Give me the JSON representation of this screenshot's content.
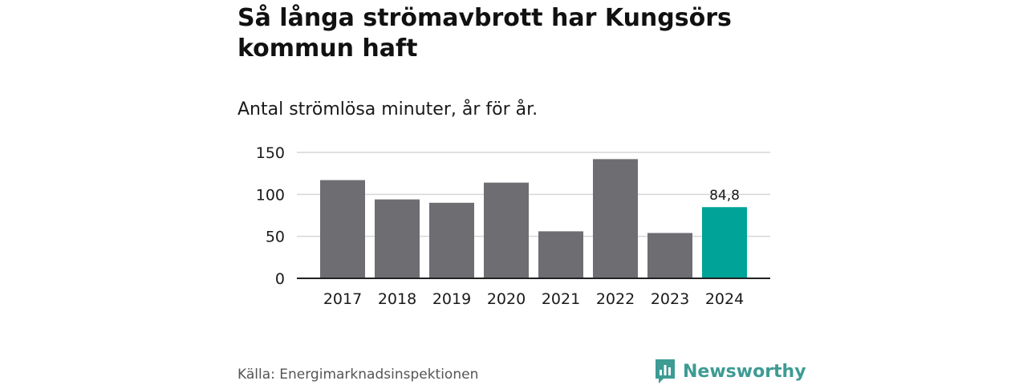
{
  "title": "Så långa strömavbrott har Kungsörs kommun haft",
  "subtitle": "Antal strömlösa minuter, år för år.",
  "source": "Källa: Energimarknadsinspektionen",
  "brand": {
    "name": "Newsworthy",
    "logo_icon": "newsworthy-logo-icon",
    "color": "#3d9b93"
  },
  "colors": {
    "bar": "#6e6d72",
    "highlight": "#00a398",
    "grid": "#d6d6d6",
    "axis": "#222222"
  },
  "chart_data": {
    "type": "bar",
    "title": "Så långa strömavbrott har Kungsörs kommun haft",
    "subtitle": "Antal strömlösa minuter, år för år.",
    "xlabel": "",
    "ylabel": "",
    "categories": [
      "2017",
      "2018",
      "2019",
      "2020",
      "2021",
      "2022",
      "2023",
      "2024"
    ],
    "values": [
      117,
      94,
      90,
      114,
      56,
      142,
      54,
      84.8
    ],
    "ylim": [
      0,
      150
    ],
    "yticks": [
      0,
      50,
      100,
      150
    ],
    "ytick_labels": [
      "0",
      "50",
      "100",
      "150"
    ],
    "grid": true,
    "highlight_index": 7,
    "annotations": [
      {
        "category": "2024",
        "label": "84,8"
      }
    ]
  }
}
